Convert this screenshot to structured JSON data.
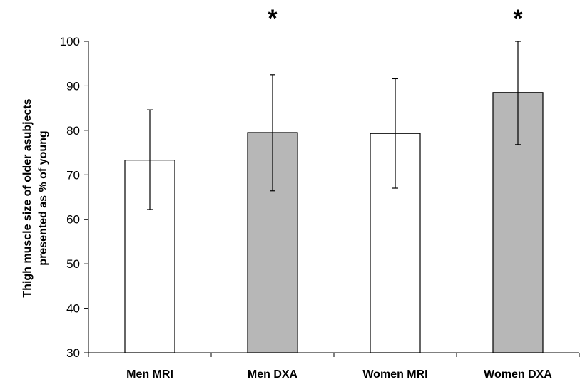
{
  "chart_data": {
    "type": "bar",
    "categories": [
      "Men MRI",
      "Men DXA",
      "Women MRI",
      "Women DXA"
    ],
    "values": [
      73.3,
      79.5,
      79.3,
      88.5
    ],
    "error_upper": [
      84.6,
      92.5,
      91.6,
      100.0
    ],
    "error_lower": [
      62.2,
      66.4,
      67.0,
      76.8
    ],
    "bar_colors": [
      "#ffffff",
      "#b7b7b7",
      "#ffffff",
      "#b7b7b7"
    ],
    "significance_markers": [
      "",
      "*",
      "",
      "*"
    ],
    "ylabel_lines": [
      "Thigh muscle size of older asubjects",
      "presented as % of young"
    ],
    "ylim": [
      30,
      100
    ],
    "yticks": [
      30,
      40,
      50,
      60,
      70,
      80,
      90,
      100
    ],
    "grid": false,
    "legend": "none"
  }
}
